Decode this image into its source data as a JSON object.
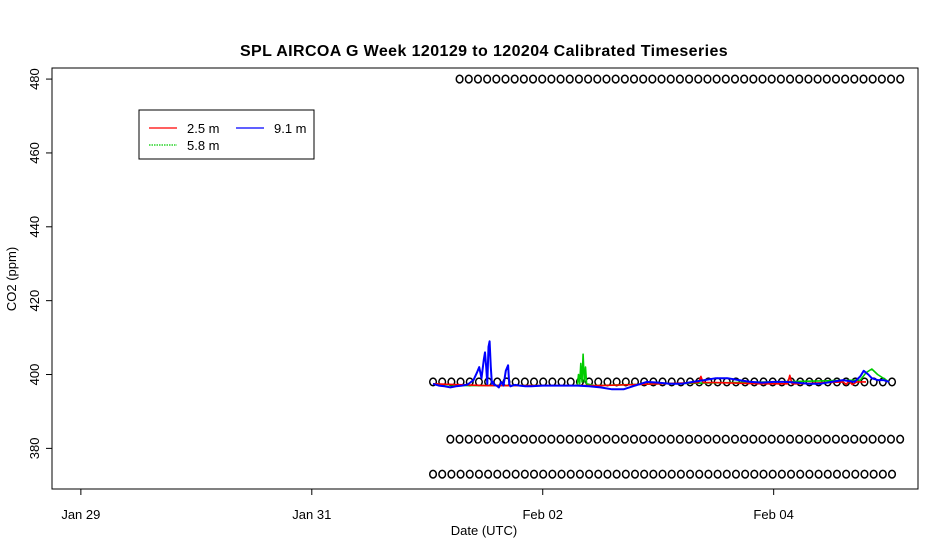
{
  "chart_data": {
    "type": "line",
    "title": "SPL AIRCOA G  Week 120129 to 120204  Calibrated Timeseries",
    "xlabel": "Date (UTC)",
    "ylabel": "CO2 (ppm)",
    "x_unit": "days",
    "xlim": [
      -0.25,
      7.25
    ],
    "ylim": [
      369,
      483
    ],
    "x_ticks": [
      {
        "value": 0,
        "label": "Jan 29"
      },
      {
        "value": 2,
        "label": "Jan 31"
      },
      {
        "value": 4,
        "label": "Feb 02"
      },
      {
        "value": 6,
        "label": "Feb 04"
      }
    ],
    "y_ticks": [
      {
        "value": 380,
        "label": "380"
      },
      {
        "value": 400,
        "label": "400"
      },
      {
        "value": 420,
        "label": "420"
      },
      {
        "value": 440,
        "label": "440"
      },
      {
        "value": 460,
        "label": "460"
      },
      {
        "value": 480,
        "label": "480"
      }
    ],
    "legend": {
      "position": "top-left",
      "entries": [
        {
          "label": "2.5 m",
          "color": "#ff0000"
        },
        {
          "label": "5.8 m",
          "color": "#00cc00"
        },
        {
          "label": "9.1 m",
          "color": "#0000ff"
        }
      ]
    },
    "series": [
      {
        "name": "2.5 m",
        "color": "#ff0000",
        "x": [
          3.05,
          3.5,
          4.0,
          4.5,
          5.0,
          5.35,
          5.37,
          5.39,
          5.42,
          5.45,
          5.5,
          5.9,
          6.12,
          6.14,
          6.16,
          6.2,
          6.6,
          6.63,
          6.65,
          6.68,
          6.72,
          6.8
        ],
        "y": [
          397.5,
          397.0,
          397.0,
          397.0,
          397.5,
          397.8,
          399.5,
          397.8,
          397.8,
          397.8,
          397.8,
          397.5,
          397.5,
          399.8,
          397.5,
          397.5,
          398.0,
          397.3,
          398.3,
          397.3,
          398.0,
          398.0
        ]
      },
      {
        "name": "5.8 m",
        "color": "#00cc00",
        "x": [
          3.05,
          3.3,
          3.5,
          4.2,
          4.3,
          4.31,
          4.32,
          4.33,
          4.34,
          4.35,
          4.36,
          4.37,
          4.38,
          4.45,
          5.0,
          6.0,
          6.75,
          6.8,
          6.85,
          6.9,
          7.0
        ],
        "y": [
          397.5,
          397.0,
          397.0,
          397.0,
          397.0,
          400.0,
          397.5,
          403.0,
          398.0,
          405.5,
          398.0,
          402.0,
          397.5,
          397.0,
          397.5,
          398.0,
          398.5,
          400.5,
          401.5,
          400.0,
          398.0
        ]
      },
      {
        "name": "9.1 m",
        "color": "#0000ff",
        "x": [
          3.05,
          3.1,
          3.15,
          3.2,
          3.25,
          3.3,
          3.35,
          3.4,
          3.43,
          3.45,
          3.47,
          3.49,
          3.5,
          3.51,
          3.52,
          3.53,
          3.54,
          3.55,
          3.56,
          3.57,
          3.58,
          3.6,
          3.62,
          3.64,
          3.66,
          3.68,
          3.7,
          3.71,
          3.72,
          3.74,
          3.76,
          3.8,
          3.85,
          3.9,
          4.0,
          4.1,
          4.2,
          4.3,
          4.4,
          4.5,
          4.6,
          4.7,
          4.75,
          4.8,
          4.85,
          4.9,
          5.0,
          5.1,
          5.2,
          5.3,
          5.4,
          5.5,
          5.6,
          5.7,
          5.8,
          5.9,
          6.0,
          6.1,
          6.2,
          6.3,
          6.4,
          6.5,
          6.6,
          6.7,
          6.75,
          6.78,
          6.8,
          6.82,
          6.85,
          6.9,
          6.95,
          7.0
        ],
        "y": [
          397.5,
          397.0,
          396.8,
          396.5,
          396.8,
          397.0,
          397.3,
          398.5,
          400.5,
          402.0,
          399.0,
          404.0,
          406.0,
          402.0,
          397.5,
          407.5,
          409.0,
          402.0,
          397.5,
          398.0,
          397.2,
          397.0,
          396.5,
          398.0,
          397.0,
          401.0,
          402.5,
          397.5,
          396.8,
          397.0,
          397.2,
          397.0,
          396.8,
          396.8,
          397.0,
          397.0,
          397.0,
          397.0,
          396.8,
          396.5,
          396.0,
          396.0,
          396.5,
          397.0,
          397.5,
          398.0,
          397.8,
          397.5,
          397.5,
          398.0,
          398.5,
          399.0,
          399.0,
          398.5,
          398.0,
          397.8,
          398.0,
          398.0,
          397.8,
          397.5,
          397.5,
          398.0,
          398.5,
          398.0,
          399.5,
          401.0,
          400.5,
          400.0,
          399.0,
          398.5,
          398.5,
          398.0
        ]
      }
    ],
    "reference_markers": [
      {
        "level": 480,
        "x_start": 3.28,
        "x_end": 7.1,
        "step": 0.0795
      },
      {
        "level": 398,
        "x_start": 3.05,
        "x_end": 7.1,
        "step": 0.0795
      },
      {
        "level": 382.5,
        "x_start": 3.2,
        "x_end": 7.1,
        "step": 0.0795
      },
      {
        "level": 373,
        "x_start": 3.05,
        "x_end": 7.1,
        "step": 0.0795
      }
    ]
  }
}
